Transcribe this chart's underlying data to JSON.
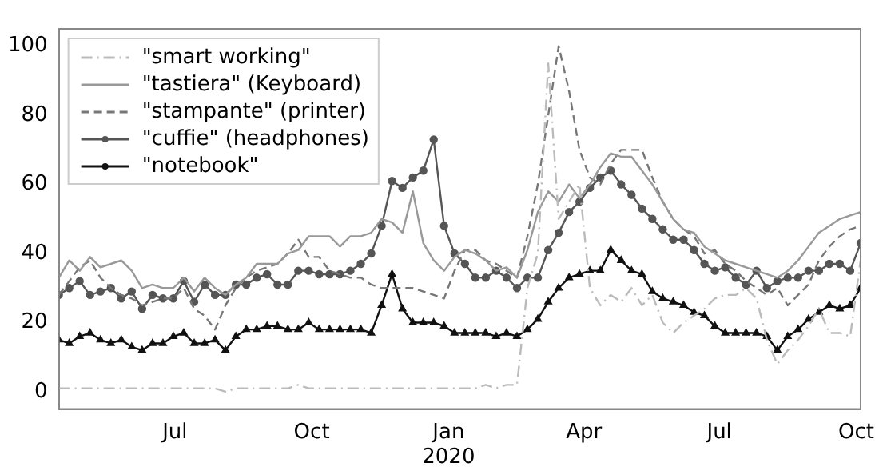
{
  "chart_data": {
    "type": "line",
    "x": [
      "2019-04-14",
      "2019-04-21",
      "2019-04-28",
      "2019-05-05",
      "2019-05-12",
      "2019-05-19",
      "2019-05-26",
      "2019-06-02",
      "2019-06-09",
      "2019-06-16",
      "2019-06-23",
      "2019-06-30",
      "2019-07-07",
      "2019-07-14",
      "2019-07-21",
      "2019-07-28",
      "2019-08-04",
      "2019-08-11",
      "2019-08-18",
      "2019-08-25",
      "2019-09-01",
      "2019-09-08",
      "2019-09-15",
      "2019-09-22",
      "2019-09-29",
      "2019-10-06",
      "2019-10-13",
      "2019-10-20",
      "2019-10-27",
      "2019-11-03",
      "2019-11-10",
      "2019-11-17",
      "2019-11-24",
      "2019-12-01",
      "2019-12-08",
      "2019-12-15",
      "2019-12-22",
      "2019-12-29",
      "2020-01-05",
      "2020-01-12",
      "2020-01-19",
      "2020-01-26",
      "2020-02-02",
      "2020-02-09",
      "2020-02-16",
      "2020-02-23",
      "2020-03-01",
      "2020-03-08",
      "2020-03-15",
      "2020-03-22",
      "2020-03-29",
      "2020-04-05",
      "2020-04-12",
      "2020-04-19",
      "2020-04-26",
      "2020-05-03",
      "2020-05-10",
      "2020-05-17",
      "2020-05-24",
      "2020-05-31",
      "2020-06-07",
      "2020-06-14",
      "2020-06-21",
      "2020-06-28",
      "2020-07-05",
      "2020-07-12",
      "2020-07-19",
      "2020-07-26",
      "2020-08-02",
      "2020-08-09",
      "2020-08-16",
      "2020-08-23",
      "2020-08-30",
      "2020-09-06",
      "2020-09-13",
      "2020-09-20",
      "2020-09-27",
      "2020-10-04"
    ],
    "series": [
      {
        "name": "\"smart working\"",
        "color": "#bbbbbb",
        "line_style": "dashdot",
        "marker": "none",
        "values": [
          1,
          1,
          1,
          1,
          1,
          1,
          1,
          1,
          1,
          1,
          1,
          1,
          1,
          1,
          1,
          1,
          0,
          1,
          1,
          1,
          1,
          1,
          1,
          2,
          1,
          1,
          1,
          1,
          1,
          1,
          1,
          1,
          1,
          1,
          1,
          1,
          1,
          1,
          1,
          1,
          1,
          2,
          1,
          2,
          2,
          30,
          40,
          95,
          50,
          55,
          60,
          30,
          25,
          28,
          26,
          30,
          25,
          28,
          20,
          17,
          20,
          22,
          24,
          27,
          28,
          28,
          30,
          27,
          15,
          8,
          12,
          15,
          19,
          24,
          17,
          17,
          16,
          38
        ]
      },
      {
        "name": "\"tastiera\" (Keyboard)",
        "color": "#999999",
        "line_style": "solid",
        "marker": "none",
        "values": [
          33,
          38,
          35,
          39,
          36,
          37,
          38,
          35,
          30,
          31,
          30,
          30,
          33,
          29,
          33,
          30,
          28,
          31,
          33,
          37,
          37,
          37,
          40,
          41,
          45,
          45,
          45,
          42,
          45,
          45,
          46,
          50,
          49,
          46,
          58,
          43,
          38,
          35,
          39,
          41,
          40,
          38,
          35,
          36,
          33,
          41,
          52,
          58,
          55,
          60,
          56,
          60,
          65,
          69,
          68,
          68,
          64,
          60,
          55,
          50,
          47,
          46,
          42,
          40,
          38,
          37,
          36,
          35,
          34,
          33,
          35,
          38,
          42,
          46,
          48,
          50,
          51,
          52
        ]
      },
      {
        "name": "\"stampante\" (printer)",
        "color": "#777777",
        "line_style": "dashed",
        "marker": "none",
        "values": [
          28,
          32,
          36,
          38,
          33,
          30,
          28,
          27,
          25,
          26,
          27,
          27,
          30,
          24,
          22,
          18,
          25,
          30,
          33,
          35,
          36,
          37,
          40,
          44,
          39,
          39,
          35,
          34,
          33,
          33,
          31,
          30,
          30,
          30,
          30,
          29,
          28,
          27,
          35,
          41,
          41,
          38,
          37,
          35,
          33,
          45,
          60,
          80,
          100,
          87,
          70,
          62,
          60,
          66,
          70,
          70,
          70,
          62,
          55,
          50,
          47,
          45,
          40,
          41,
          37,
          35,
          32,
          30,
          28,
          30,
          25,
          28,
          31,
          38,
          42,
          45,
          47,
          48
        ]
      },
      {
        "name": "\"cuffie\" (headphones)",
        "color": "#555555",
        "line_style": "solid",
        "marker": "circle",
        "values": [
          28,
          30,
          32,
          28,
          29,
          30,
          27,
          29,
          24,
          28,
          27,
          27,
          32,
          26,
          31,
          28,
          28,
          31,
          31,
          33,
          34,
          31,
          31,
          35,
          35,
          34,
          34,
          34,
          35,
          37,
          40,
          48,
          61,
          59,
          62,
          64,
          73,
          48,
          40,
          37,
          33,
          33,
          35,
          33,
          30,
          33,
          33,
          41,
          46,
          52,
          55,
          59,
          62,
          64,
          60,
          57,
          53,
          50,
          47,
          44,
          44,
          41,
          37,
          35,
          36,
          33,
          31,
          35,
          30,
          32,
          33,
          33,
          35,
          35,
          37,
          37,
          35,
          43
        ]
      },
      {
        "name": "\"notebook\"",
        "color": "#111111",
        "line_style": "solid",
        "marker": "triangle",
        "values": [
          15,
          14,
          16,
          17,
          15,
          14,
          15,
          13,
          12,
          14,
          14,
          16,
          17,
          14,
          14,
          15,
          12,
          16,
          18,
          18,
          19,
          19,
          18,
          18,
          20,
          18,
          18,
          18,
          18,
          18,
          17,
          25,
          34,
          24,
          20,
          20,
          20,
          19,
          17,
          17,
          17,
          17,
          16,
          17,
          16,
          18,
          21,
          26,
          30,
          33,
          34,
          35,
          35,
          41,
          38,
          35,
          34,
          29,
          27,
          26,
          25,
          23,
          22,
          19,
          17,
          17,
          17,
          17,
          16,
          12,
          16,
          18,
          21,
          23,
          25,
          24,
          25,
          30
        ]
      }
    ],
    "xlim": [
      "2019-04-14",
      "2020-10-04"
    ],
    "xticks": [
      {
        "value": "2019-07-01",
        "label": "Jul"
      },
      {
        "value": "2019-10-01",
        "label": "Oct"
      },
      {
        "value": "2020-01-01",
        "label": "Jan\n2020"
      },
      {
        "value": "2020-04-01",
        "label": "Apr"
      },
      {
        "value": "2020-07-01",
        "label": "Jul"
      },
      {
        "value": "2020-10-01",
        "label": "Oct"
      }
    ],
    "ylim": [
      -5,
      105
    ],
    "yticks": [
      0,
      20,
      40,
      60,
      80,
      100
    ],
    "legend": "top left"
  }
}
